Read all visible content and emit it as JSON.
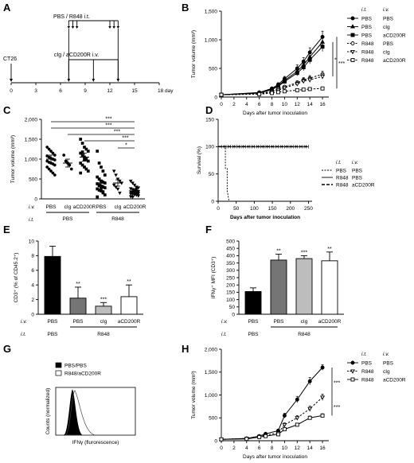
{
  "panels": {
    "A": {
      "label": "A",
      "tumor_label": "CT26",
      "treatment_top": "PBS / R848 i.t.",
      "treatment_bottom": "cIg / aCD200R i.v.",
      "x_ticks": [
        "0",
        "3",
        "6",
        "9",
        "12",
        "15",
        "18 day"
      ],
      "x_values": [
        0,
        3,
        6,
        9,
        12,
        15,
        18
      ],
      "it_days": [
        7,
        7.5,
        8,
        12,
        12.5,
        13
      ],
      "iv_days": [
        7,
        10,
        13
      ]
    },
    "B": {
      "label": "B"
    },
    "C": {
      "label": "C"
    },
    "D": {
      "label": "D"
    },
    "E": {
      "label": "E"
    },
    "F": {
      "label": "F"
    },
    "G": {
      "label": "G"
    },
    "H": {
      "label": "H"
    }
  },
  "chart_data": [
    {
      "id": "B",
      "type": "line",
      "xlabel": "Days after tumor inoculation",
      "ylabel": "Tumor volume (mm³)",
      "xlim": [
        0,
        17
      ],
      "ylim": [
        0,
        1500
      ],
      "x_ticks": [
        0,
        2,
        4,
        6,
        8,
        10,
        12,
        14,
        16
      ],
      "y_ticks": [
        0,
        500,
        1000,
        1500
      ],
      "y_tick_labels": [
        "0",
        "500",
        "1,000",
        "1,500"
      ],
      "legend_headers": [
        "i.t.",
        "i.v."
      ],
      "x": [
        0,
        6,
        8,
        9,
        10,
        12,
        13,
        14,
        16
      ],
      "series": [
        {
          "name_it": "PBS",
          "name_iv": "PBS",
          "marker": "circle",
          "fill": true,
          "dashed": false,
          "values": [
            40,
            80,
            150,
            220,
            320,
            500,
            620,
            780,
            1050
          ],
          "errors": [
            10,
            15,
            25,
            30,
            40,
            60,
            70,
            80,
            100
          ]
        },
        {
          "name_it": "PBS",
          "name_iv": "cIg",
          "marker": "triangle",
          "fill": true,
          "dashed": false,
          "values": [
            40,
            75,
            140,
            200,
            290,
            450,
            560,
            700,
            960
          ],
          "errors": [
            10,
            15,
            25,
            30,
            40,
            55,
            65,
            75,
            90
          ]
        },
        {
          "name_it": "PBS",
          "name_iv": "aCD200R",
          "marker": "square",
          "fill": true,
          "dashed": false,
          "values": [
            40,
            70,
            130,
            190,
            270,
            420,
            520,
            650,
            880
          ],
          "errors": [
            10,
            15,
            20,
            30,
            35,
            50,
            60,
            70,
            85
          ]
        },
        {
          "name_it": "R848",
          "name_iv": "PBS",
          "marker": "circle",
          "fill": false,
          "dashed": true,
          "values": [
            40,
            60,
            100,
            140,
            180,
            250,
            300,
            330,
            400
          ],
          "errors": [
            10,
            12,
            15,
            20,
            25,
            35,
            40,
            45,
            50
          ]
        },
        {
          "name_it": "R848",
          "name_iv": "cIg",
          "marker": "triangle-down",
          "fill": false,
          "dashed": true,
          "values": [
            40,
            55,
            90,
            120,
            160,
            230,
            280,
            300,
            360
          ],
          "errors": [
            10,
            12,
            15,
            20,
            25,
            30,
            35,
            40,
            45
          ]
        },
        {
          "name_it": "R848",
          "name_iv": "aCD200R",
          "marker": "square",
          "fill": false,
          "dashed": true,
          "values": [
            40,
            50,
            70,
            85,
            100,
            120,
            130,
            140,
            150
          ],
          "errors": [
            8,
            10,
            12,
            15,
            15,
            20,
            20,
            25,
            25
          ]
        }
      ],
      "significance": [
        "***",
        "*"
      ]
    },
    {
      "id": "C",
      "type": "scatter",
      "ylabel": "Tumor volume (mm³)",
      "ylim": [
        0,
        2000
      ],
      "y_ticks": [
        0,
        500,
        1000,
        1500,
        2000
      ],
      "y_tick_labels": [
        "0",
        "500",
        "1,000",
        "1,500",
        "2,000"
      ],
      "iv_label": "i.v.",
      "it_label": "i.t.",
      "groups": [
        {
          "iv": "PBS",
          "it": "PBS",
          "mean": 1000,
          "sem": 100,
          "points": [
            1300,
            1250,
            1200,
            1150,
            1100,
            1080,
            1050,
            1020,
            1000,
            980,
            950,
            920,
            900,
            880,
            850,
            800,
            750,
            700,
            650,
            600
          ]
        },
        {
          "iv": "cIg",
          "it": "PBS",
          "mean": 900,
          "sem": 100,
          "points": [
            1100,
            950,
            900,
            850,
            750
          ]
        },
        {
          "iv": "aCD200R",
          "it": "PBS",
          "mean": 1050,
          "sem": 100,
          "points": [
            1500,
            1400,
            1300,
            1250,
            1200,
            1150,
            1100,
            1050,
            1000,
            950,
            900,
            850,
            800,
            750,
            700,
            650,
            1180,
            980
          ]
        },
        {
          "iv": "PBS",
          "it": "R848",
          "mean": 400,
          "sem": 60,
          "points": [
            1200,
            900,
            800,
            700,
            600,
            550,
            500,
            450,
            420,
            400,
            380,
            350,
            320,
            300,
            280,
            250,
            220,
            200,
            150,
            100,
            50,
            330,
            270,
            180
          ]
        },
        {
          "iv": "cIg",
          "it": "R848",
          "mean": 400,
          "sem": 80,
          "points": [
            700,
            600,
            500,
            450,
            400,
            350,
            300,
            250,
            150
          ]
        },
        {
          "iv": "aCD200R",
          "it": "R848",
          "mean": 200,
          "sem": 30,
          "points": [
            450,
            400,
            350,
            300,
            280,
            260,
            240,
            220,
            200,
            190,
            180,
            170,
            160,
            150,
            140,
            130,
            120,
            110,
            100,
            80,
            60,
            50,
            210,
            250
          ]
        }
      ],
      "it_groups": [
        "PBS",
        "R848"
      ],
      "comparisons": [
        "***",
        "***",
        "***",
        "***",
        "*"
      ]
    },
    {
      "id": "D",
      "type": "line",
      "xlabel": "Days after tumor inoculation",
      "ylabel": "Survival (%)",
      "xlim": [
        0,
        260
      ],
      "ylim": [
        0,
        150
      ],
      "x_ticks": [
        0,
        50,
        100,
        150,
        200,
        250
      ],
      "y_ticks": [
        0,
        50,
        100,
        150
      ],
      "legend_headers": [
        "i.t.",
        "i.v."
      ],
      "series": [
        {
          "name_it": "PBS",
          "name_iv": "PBS",
          "style": "dashed",
          "x": [
            0,
            20,
            20,
            25,
            25,
            30
          ],
          "values": [
            100,
            100,
            60,
            60,
            20,
            0
          ]
        },
        {
          "name_it": "R848",
          "name_iv": "PBS",
          "style": "solid-ticks",
          "x": [
            0,
            250
          ],
          "values": [
            100,
            100
          ]
        },
        {
          "name_it": "R848",
          "name_iv": "aCD200R",
          "style": "thick-dashed",
          "x": [
            0,
            250
          ],
          "values": [
            100,
            100
          ]
        }
      ]
    },
    {
      "id": "E",
      "type": "bar",
      "ylabel": "CD3⁺ (% of CD45.2⁺)",
      "ylim": [
        0,
        10
      ],
      "y_ticks": [
        0,
        2,
        4,
        6,
        8,
        10
      ],
      "iv_label": "i.v.",
      "it_label": "i.t.",
      "categories": [
        "PBS",
        "PBS",
        "cIg",
        "aCD200R"
      ],
      "it_groups": [
        "PBS",
        "R848"
      ],
      "values": [
        7.9,
        2.2,
        1.1,
        2.4
      ],
      "errors": [
        1.4,
        1.5,
        0.5,
        1.6
      ],
      "fills": [
        "#000000",
        "#757575",
        "#bdbdbd",
        "#ffffff"
      ],
      "significance": [
        "",
        "**",
        "***",
        "**"
      ]
    },
    {
      "id": "F",
      "type": "bar",
      "ylabel": "IFNγ⁺ MFI (CD3⁺)",
      "ylim": [
        0,
        500
      ],
      "y_ticks": [
        0,
        50,
        100,
        150,
        200,
        250,
        300,
        350,
        400,
        450,
        500
      ],
      "iv_label": "i.v.",
      "it_label": "i.t.",
      "categories": [
        "PBS",
        "PBS",
        "cIg",
        "aCD200R"
      ],
      "it_groups": [
        "PBS",
        "R848"
      ],
      "values": [
        155,
        370,
        380,
        365
      ],
      "errors": [
        25,
        40,
        20,
        60
      ],
      "fills": [
        "#000000",
        "#757575",
        "#bdbdbd",
        "#ffffff"
      ],
      "significance": [
        "",
        "**",
        "***",
        "**"
      ]
    },
    {
      "id": "G",
      "type": "area",
      "xlabel": "IFNγ (flurorescence)",
      "ylabel": "Counts (normalized)",
      "series": [
        {
          "name": "PBS/PBS",
          "fill": "#000000"
        },
        {
          "name": "R848/aCD200R",
          "fill": "#ffffff"
        }
      ]
    },
    {
      "id": "H",
      "type": "line",
      "xlabel": "Days after tumor inoculation",
      "ylabel": "Tumor volume (mm³)",
      "xlim": [
        0,
        17
      ],
      "ylim": [
        0,
        2000
      ],
      "x_ticks": [
        0,
        2,
        4,
        6,
        8,
        10,
        12,
        14,
        16
      ],
      "y_ticks": [
        0,
        500,
        1000,
        1500,
        2000
      ],
      "y_tick_labels": [
        "0",
        "500",
        "1,000",
        "1,500",
        "2,000"
      ],
      "legend_headers": [
        "i.t.",
        "i.v."
      ],
      "x": [
        0,
        4,
        6,
        7,
        9,
        10,
        12,
        14,
        16
      ],
      "series": [
        {
          "name_it": "PBS",
          "name_iv": "PBS",
          "marker": "circle",
          "fill": true,
          "dashed": false,
          "values": [
            30,
            50,
            100,
            150,
            220,
            550,
            900,
            1300,
            1600
          ],
          "errors": [
            5,
            10,
            15,
            20,
            30,
            50,
            70,
            80,
            60
          ]
        },
        {
          "name_it": "R848",
          "name_iv": "cIg",
          "marker": "triangle-down",
          "fill": false,
          "dashed": true,
          "values": [
            30,
            50,
            90,
            120,
            170,
            350,
            500,
            700,
            950
          ],
          "errors": [
            5,
            10,
            12,
            15,
            20,
            40,
            50,
            60,
            70
          ]
        },
        {
          "name_it": "R848",
          "name_iv": "aCD200R",
          "marker": "square",
          "fill": false,
          "dashed": false,
          "values": [
            30,
            40,
            80,
            100,
            140,
            250,
            350,
            500,
            550
          ],
          "errors": [
            5,
            8,
            10,
            12,
            15,
            25,
            30,
            40,
            40
          ]
        }
      ],
      "significance": [
        "***",
        "***"
      ]
    }
  ]
}
